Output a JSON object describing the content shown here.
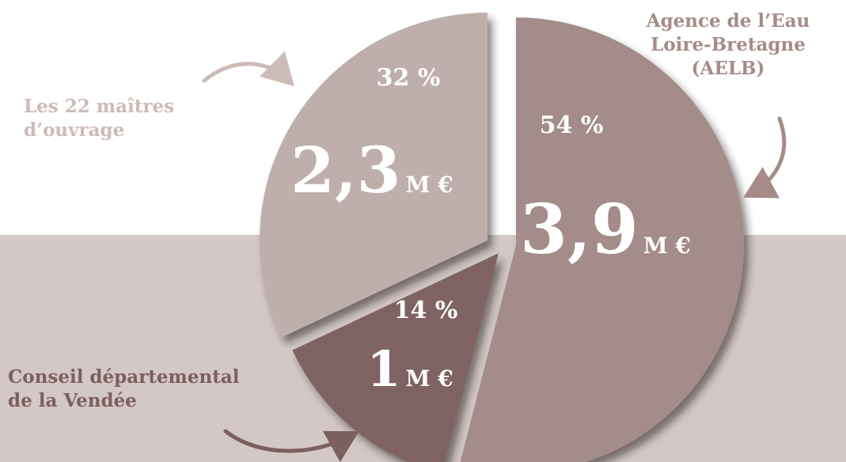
{
  "chart_data": {
    "type": "pie",
    "slices": [
      {
        "label": "Agence de l’Eau\nLoire-Bretagne\n(AELB)",
        "percent_label": "54 %",
        "amount_number": "3,9",
        "amount_unit": "M €",
        "value": 54,
        "color": "#a38c89"
      },
      {
        "label": "Conseil départemental\nde la Vendée",
        "percent_label": "14 %",
        "amount_number": "1",
        "amount_unit": "M €",
        "value": 14,
        "color": "#7f6363"
      },
      {
        "label": "Les 22 maîtres\nd’ouvrage",
        "percent_label": "32 %",
        "amount_number": "2,3",
        "amount_unit": "M €",
        "value": 32,
        "color": "#bfafac"
      }
    ],
    "colors": {
      "background": "#ffffff",
      "band": "#d3c8c6",
      "slice_text": "#ffffff",
      "arrow_aelb": "#a68b88",
      "arrow_mo": "#cdbbb8",
      "arrow_cd": "#7c5f5f"
    }
  }
}
